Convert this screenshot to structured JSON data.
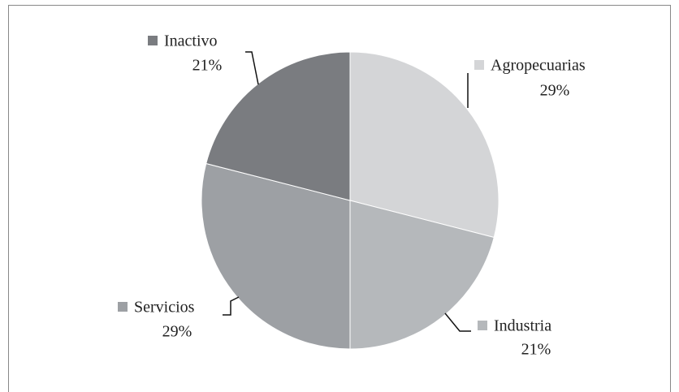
{
  "chart_data": {
    "type": "pie",
    "categories": [
      "Agropecuarias",
      "Industria",
      "Servicios",
      "Inactivo"
    ],
    "values": [
      29,
      21,
      29,
      21
    ],
    "value_labels": [
      "29%",
      "21%",
      "29%",
      "21%"
    ],
    "colors": [
      "#d4d5d7",
      "#b5b8bb",
      "#9da0a4",
      "#7a7c80"
    ]
  }
}
